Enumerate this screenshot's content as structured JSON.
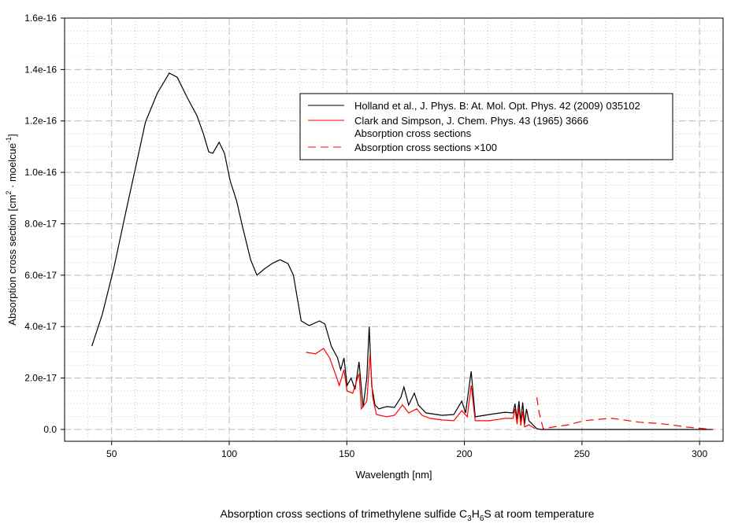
{
  "chart_data": {
    "type": "line",
    "title_parts": [
      "Absorption cross sections of trimethylene sulfide C",
      "3",
      "H",
      "6",
      "S at room temperature"
    ],
    "xlabel": "Wavelength [nm]",
    "ylabel_parts": [
      "Absorption cross section [cm",
      "2",
      " · moelcue",
      "-1",
      "]"
    ],
    "xlim": [
      30,
      310
    ],
    "ylim": [
      -4.6e-18,
      1.6e-16
    ],
    "xticks": [
      50,
      100,
      150,
      200,
      250,
      300
    ],
    "xtick_labels": [
      "50",
      "100",
      "150",
      "200",
      "250",
      "300"
    ],
    "yticks": [
      0,
      2e-17,
      4e-17,
      6e-17,
      8e-17,
      1e-16,
      1.2e-16,
      1.4e-16,
      1.6e-16
    ],
    "ytick_labels": [
      "0.0",
      "2.0e-17",
      "4.0e-17",
      "6.0e-17",
      "8.0e-17",
      "1.0e-16",
      "1.2e-16",
      "1.4e-16",
      "1.6e-16"
    ],
    "grid": true,
    "legend_position": "top-right",
    "legend": [
      {
        "label": "Holland et al., J. Phys. B: At. Mol. Opt. Phys. 42 (2009) 035102",
        "color": "#000000",
        "style": "solid"
      },
      {
        "label": "Clark and Simpson, J. Chem. Phys. 43 (1965) 3666",
        "color": "#ff0000",
        "style": "solid"
      },
      {
        "label": "Absorption cross sections",
        "color": null,
        "style": "none"
      },
      {
        "label": "Absorption cross sections ×100",
        "color": "#ff0000",
        "style": "dashed"
      }
    ],
    "series": [
      {
        "name": "Holland et al.",
        "color": "#000000",
        "style": "solid",
        "x": [
          41.6,
          46,
          51,
          56,
          61.1,
          64.4,
          69.5,
          74.5,
          77.9,
          82.3,
          86.3,
          89,
          91.3,
          93,
          95.7,
          98,
          100.4,
          103.1,
          105.8,
          109.1,
          111.8,
          114.9,
          118.2,
          121.6,
          125,
          127.3,
          130.6,
          134,
          138.4,
          140.7,
          143.4,
          146.1,
          147.4,
          148.8,
          150.1,
          151.8,
          153.5,
          155.2,
          156.9,
          158.5,
          159.5,
          160.6,
          162,
          163.6,
          167,
          170.3,
          173,
          174.3,
          176.3,
          178.7,
          180.4,
          183.7,
          190.5,
          195.5,
          198.9,
          200.5,
          202.9,
          204.6,
          210.6,
          217.3,
          220.7,
          221.5,
          222.4,
          223.2,
          224,
          224.8,
          225.6,
          226.4,
          227.4,
          230.8,
          232.5,
          305.7
        ],
        "y": [
          3.24e-17,
          4.47e-17,
          6.3e-17,
          8.44e-17,
          1.058e-16,
          1.196e-16,
          1.309e-16,
          1.386e-16,
          1.37e-16,
          1.288e-16,
          1.22e-16,
          1.15e-16,
          1.08e-16,
          1.074e-16,
          1.117e-16,
          1.074e-16,
          9.67e-17,
          8.9e-17,
          7.83e-17,
          6.6e-17,
          6e-17,
          6.24e-17,
          6.45e-17,
          6.6e-17,
          6.45e-17,
          6e-17,
          4.22e-17,
          4.04e-17,
          4.22e-17,
          4.1e-17,
          3.24e-17,
          2.78e-17,
          2.32e-17,
          2.78e-17,
          1.71e-17,
          2e-17,
          1.56e-17,
          2.63e-17,
          8.6e-18,
          2e-17,
          4e-17,
          1.71e-17,
          9.5e-18,
          8e-18,
          8.9e-18,
          8.6e-18,
          1.25e-17,
          1.65e-17,
          9.5e-18,
          1.41e-17,
          9.5e-18,
          6.4e-18,
          5.5e-18,
          5.8e-18,
          1.1e-17,
          6.4e-18,
          2.26e-17,
          4.9e-18,
          5.8e-18,
          6.7e-18,
          6.4e-18,
          1e-17,
          4e-18,
          1.1e-17,
          3e-18,
          1.05e-17,
          2e-18,
          8e-18,
          3.4e-18,
          3e-19,
          0,
          0
        ]
      },
      {
        "name": "Clark and Simpson",
        "color": "#ff0000",
        "style": "solid",
        "x": [
          132.7,
          136.7,
          140.1,
          142.7,
          145.1,
          146.8,
          148.8,
          150.1,
          152.5,
          155.2,
          156.2,
          158.5,
          159.9,
          161,
          162.6,
          167,
          170.3,
          173.7,
          176.3,
          179.7,
          182,
          185.4,
          190.5,
          195.5,
          198.9,
          201.2,
          202.9,
          204.6,
          210.6,
          217.3,
          220.7,
          221.5,
          222.4,
          223.2,
          224,
          224.8,
          225.6,
          227.4,
          230.1
        ],
        "y": [
          3e-17,
          2.94e-17,
          3.15e-17,
          2.78e-17,
          2.17e-17,
          1.71e-17,
          2.32e-17,
          1.5e-17,
          1.41e-17,
          2.17e-17,
          8e-18,
          1.1e-17,
          2.94e-17,
          1.25e-17,
          5.8e-18,
          4.9e-18,
          5.5e-18,
          9.5e-18,
          6.4e-18,
          8e-18,
          5.5e-18,
          4.3e-18,
          3.7e-18,
          3.4e-18,
          7.3e-18,
          4.9e-18,
          1.71e-17,
          3.4e-18,
          3.4e-18,
          4.3e-18,
          4.3e-18,
          8e-18,
          2e-18,
          8.5e-18,
          1.5e-18,
          7e-18,
          1e-18,
          1.8e-18,
          3e-19
        ]
      },
      {
        "name": "Absorption cross sections ×100",
        "color": "#ff0000",
        "style": "dashed",
        "x": [
          230.8,
          231.8,
          233.5,
          237.5,
          244.2,
          250.9,
          257.7,
          262.7,
          267.7,
          274.5,
          281.2,
          287.9,
          294.6,
          305.7
        ],
        "y": [
          1.25e-17,
          6.4e-18,
          3e-19,
          9e-19,
          1.8e-18,
          3.4e-18,
          4e-18,
          4.3e-18,
          3.7e-18,
          2.8e-18,
          2.4e-18,
          1.8e-18,
          9e-19,
          0
        ]
      }
    ]
  }
}
